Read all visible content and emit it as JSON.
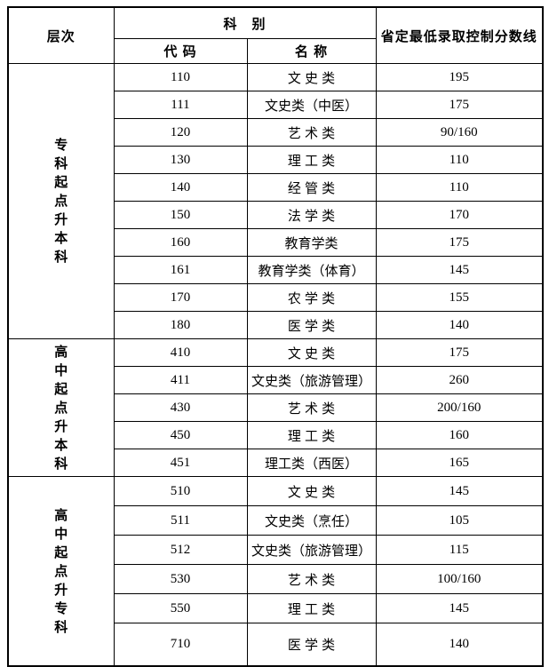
{
  "header": {
    "level": "层次",
    "subject": "科　别",
    "code": "代 码",
    "name": "名 称",
    "scoreline": "省定最低录取控制分数线"
  },
  "sections": [
    {
      "label": "专科起点升本科",
      "rows": [
        {
          "code": "110",
          "name": "文 史 类",
          "score": "195"
        },
        {
          "code": "111",
          "name": "文史类（中医）",
          "score": "175"
        },
        {
          "code": "120",
          "name": "艺 术 类",
          "score": "90/160"
        },
        {
          "code": "130",
          "name": "理 工 类",
          "score": "110"
        },
        {
          "code": "140",
          "name": "经 管 类",
          "score": "110"
        },
        {
          "code": "150",
          "name": "法 学 类",
          "score": "170"
        },
        {
          "code": "160",
          "name": "教育学类",
          "score": "175"
        },
        {
          "code": "161",
          "name": "教育学类（体育）",
          "score": "145"
        },
        {
          "code": "170",
          "name": "农 学 类",
          "score": "155"
        },
        {
          "code": "180",
          "name": "医 学 类",
          "score": "140"
        }
      ]
    },
    {
      "label": "高中起点升本科",
      "rows": [
        {
          "code": "410",
          "name": "文 史 类",
          "score": "175"
        },
        {
          "code": "411",
          "name": "文史类（旅游管理）",
          "score": "260"
        },
        {
          "code": "430",
          "name": "艺 术 类",
          "score": "200/160"
        },
        {
          "code": "450",
          "name": "理 工 类",
          "score": "160"
        },
        {
          "code": "451",
          "name": "理工类（西医）",
          "score": "165"
        }
      ]
    },
    {
      "label": "高中起点升专科",
      "rows": [
        {
          "code": "510",
          "name": "文 史 类",
          "score": "145"
        },
        {
          "code": "511",
          "name": "文史类（烹任）",
          "score": "105"
        },
        {
          "code": "512",
          "name": "文史类（旅游管理）",
          "score": "115"
        },
        {
          "code": "530",
          "name": "艺 术 类",
          "score": "100/160"
        },
        {
          "code": "550",
          "name": "理 工 类",
          "score": "145"
        },
        {
          "code": "710",
          "name": "医 学 类",
          "score": "140"
        }
      ]
    }
  ],
  "colors": {
    "border": "#000000",
    "background": "#ffffff",
    "text": "#000000"
  }
}
